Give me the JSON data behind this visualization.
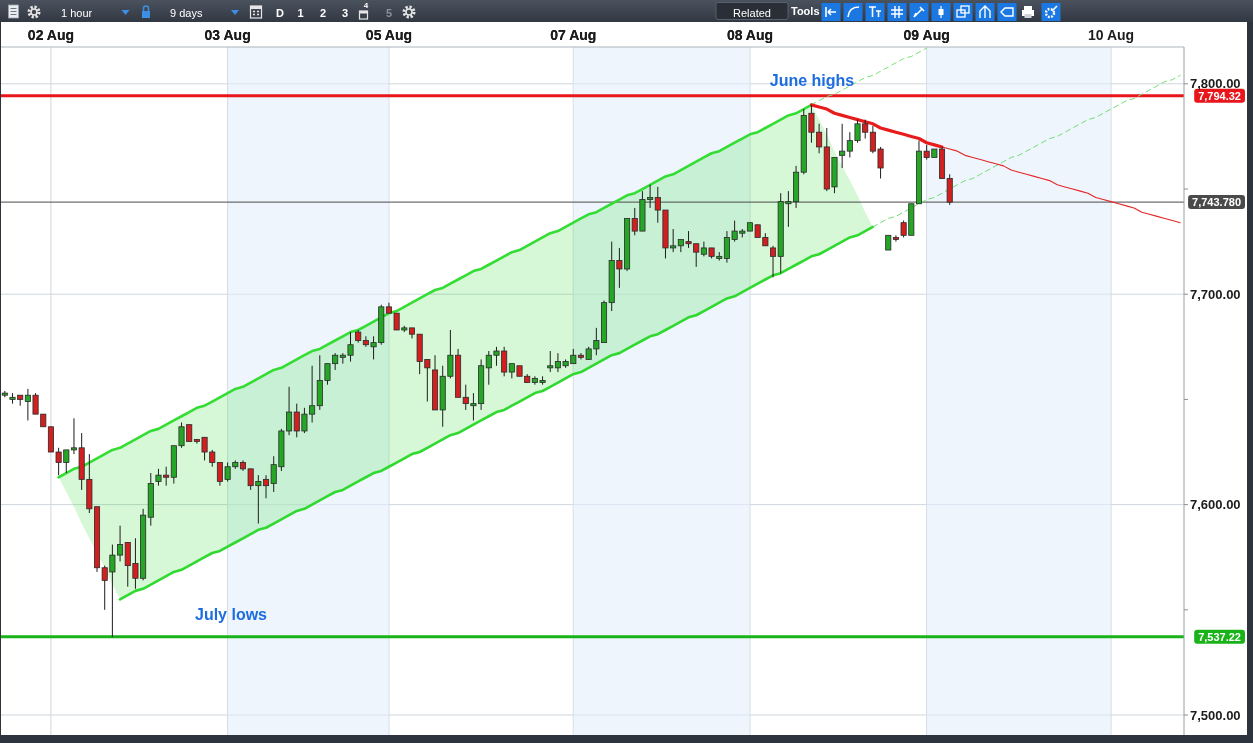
{
  "chart_data": {
    "type": "candlestick",
    "categories": [
      null,
      null,
      null,
      null,
      null,
      null,
      "02 Aug",
      null,
      null,
      null,
      null,
      null,
      null,
      null,
      null,
      null,
      null,
      null,
      null,
      null,
      null,
      null,
      null,
      null,
      null,
      null,
      null,
      null,
      null,
      "03 Aug",
      null,
      null,
      null,
      null,
      null,
      null,
      null,
      null,
      null,
      null,
      null,
      null,
      null,
      null,
      null,
      null,
      null,
      null,
      null,
      null,
      "05 Aug",
      null,
      null,
      null,
      null,
      null,
      null,
      null,
      null,
      null,
      null,
      null,
      null,
      null,
      null,
      null,
      null,
      null,
      null,
      null,
      null,
      null,
      null,
      null,
      "07 Aug",
      null,
      null,
      null,
      null,
      null,
      null,
      null,
      null,
      null,
      null,
      null,
      null,
      null,
      null,
      null,
      null,
      null,
      null,
      null,
      null,
      null,
      null,
      "08 Aug",
      null,
      null,
      null,
      null,
      null,
      null,
      null,
      null,
      null,
      null,
      null,
      null,
      null,
      null,
      null,
      null,
      null,
      null,
      null,
      null,
      null,
      null,
      "09 Aug",
      null,
      null,
      null,
      null,
      null,
      null,
      null,
      null,
      null,
      null,
      null,
      null,
      null,
      null,
      null,
      null,
      null,
      null,
      null,
      null,
      null,
      null,
      null,
      "10 Aug",
      null,
      null,
      null,
      null,
      null,
      null,
      null,
      null,
      null
    ],
    "ohlc": [
      [
        7652,
        7654,
        7651,
        7653
      ],
      [
        7650,
        7653,
        7648,
        7651
      ],
      [
        7652,
        7652,
        7647,
        7650
      ],
      [
        7649,
        7655,
        7640,
        7652
      ],
      [
        7652,
        7653,
        7643,
        7643
      ],
      [
        7643,
        7643,
        7637,
        7637
      ],
      [
        7637,
        7637,
        7625,
        7625
      ],
      [
        7625,
        7627,
        7614,
        7620
      ],
      [
        7620,
        7626,
        7615,
        7626
      ],
      [
        7626,
        7641,
        7624,
        7627
      ],
      [
        7627,
        7634,
        7607,
        7612
      ],
      [
        7612,
        7624,
        7596,
        7598
      ],
      [
        7599,
        7599,
        7568,
        7570
      ],
      [
        7570,
        7571,
        7550,
        7564
      ],
      [
        7568,
        7581,
        7537,
        7576
      ],
      [
        7576,
        7590,
        7573,
        7581
      ],
      [
        7582,
        7582,
        7561,
        7571
      ],
      [
        7572,
        7584,
        7560,
        7565
      ],
      [
        7565,
        7598,
        7564,
        7595
      ],
      [
        7594,
        7615,
        7590,
        7610
      ],
      [
        7611,
        7617,
        7609,
        7614
      ],
      [
        7614,
        7618,
        7609,
        7613
      ],
      [
        7613,
        7628,
        7610,
        7628
      ],
      [
        7628,
        7639,
        7627,
        7637
      ],
      [
        7638,
        7638,
        7630,
        7630
      ],
      [
        7631,
        7631,
        7629,
        7630
      ],
      [
        7632,
        7632,
        7621,
        7625
      ],
      [
        7625,
        7626,
        7618,
        7620
      ],
      [
        7620,
        7620,
        7609,
        7611
      ],
      [
        7612,
        7620,
        7611,
        7618
      ],
      [
        7618,
        7621,
        7617,
        7620
      ],
      [
        7620,
        7621,
        7616,
        7617
      ],
      [
        7617,
        7617,
        7607,
        7609
      ],
      [
        7609,
        7614,
        7591,
        7611
      ],
      [
        7612,
        7614,
        7603,
        7609
      ],
      [
        7610,
        7623,
        7606,
        7619
      ],
      [
        7618,
        7636,
        7616,
        7635
      ],
      [
        7635,
        7656,
        7633,
        7644
      ],
      [
        7644,
        7648,
        7632,
        7635
      ],
      [
        7635,
        7646,
        7634,
        7643
      ],
      [
        7643,
        7666,
        7639,
        7647
      ],
      [
        7647,
        7671,
        7645,
        7659
      ],
      [
        7659,
        7667,
        7657,
        7667
      ],
      [
        7667,
        7672,
        7664,
        7671
      ],
      [
        7670,
        7672,
        7667,
        7671
      ],
      [
        7671,
        7682,
        7668,
        7676
      ],
      [
        7682,
        7683,
        7677,
        7678
      ],
      [
        7678,
        7680,
        7675,
        7676
      ],
      [
        7675,
        7680,
        7669,
        7677
      ],
      [
        7677,
        7695,
        7676,
        7694
      ],
      [
        7694,
        7696,
        7691,
        7691
      ],
      [
        7691,
        7691,
        7683,
        7683
      ],
      [
        7683,
        7685,
        7682,
        7684
      ],
      [
        7684,
        7684,
        7679,
        7681
      ],
      [
        7681,
        7681,
        7662,
        7668
      ],
      [
        7669,
        7669,
        7649,
        7665
      ],
      [
        7664,
        7671,
        7645,
        7645
      ],
      [
        7645,
        7666,
        7637,
        7661
      ],
      [
        7661,
        7683,
        7660,
        7671
      ],
      [
        7671,
        7674,
        7651,
        7651
      ],
      [
        7651,
        7657,
        7645,
        7648
      ],
      [
        7647,
        7653,
        7640,
        7648
      ],
      [
        7648,
        7669,
        7645,
        7666
      ],
      [
        7665,
        7673,
        7657,
        7671
      ],
      [
        7671,
        7675,
        7666,
        7673
      ],
      [
        7673,
        7675,
        7661,
        7663
      ],
      [
        7663,
        7667,
        7660,
        7667
      ],
      [
        7666,
        7666,
        7661,
        7661
      ],
      [
        7661,
        7662,
        7658,
        7658
      ],
      [
        7658,
        7661,
        7657,
        7660
      ],
      [
        7658,
        7661,
        7657,
        7659
      ],
      [
        7665,
        7673,
        7663,
        7666
      ],
      [
        7665,
        7672,
        7663,
        7668
      ],
      [
        7666,
        7669,
        7665,
        7668
      ],
      [
        7667,
        7674,
        7667,
        7671
      ],
      [
        7671,
        7672,
        7669,
        7670
      ],
      [
        7669,
        7675,
        7669,
        7674
      ],
      [
        7674,
        7684,
        7671,
        7678
      ],
      [
        7677,
        7697,
        7677,
        7696
      ],
      [
        7696,
        7725,
        7692,
        7716
      ],
      [
        7716,
        7722,
        7703,
        7712
      ],
      [
        7712,
        7736,
        7711,
        7736
      ],
      [
        7736,
        7741,
        7728,
        7730
      ],
      [
        7730,
        7749,
        7730,
        7745
      ],
      [
        7745,
        7752,
        7741,
        7746
      ],
      [
        7746,
        7751,
        7734,
        7740
      ],
      [
        7740,
        7740,
        7717,
        7722
      ],
      [
        7722,
        7731,
        7720,
        7723
      ],
      [
        7723,
        7726,
        7720,
        7726
      ],
      [
        7725,
        7730,
        7722,
        7724
      ],
      [
        7724,
        7724,
        7713,
        7720
      ],
      [
        7719,
        7725,
        7718,
        7722
      ],
      [
        7722,
        7722,
        7717,
        7718
      ],
      [
        7717,
        7720,
        7716,
        7718
      ],
      [
        7717,
        7730,
        7715,
        7727
      ],
      [
        7726,
        7735,
        7725,
        7730
      ],
      [
        7729,
        7731,
        7727,
        7730
      ],
      [
        7730,
        7734,
        7730,
        7734
      ],
      [
        7733,
        7733,
        7727,
        7727
      ],
      [
        7727,
        7729,
        7723,
        7723
      ],
      [
        7722,
        7723,
        7708,
        7718
      ],
      [
        7718,
        7748,
        7710,
        7744
      ],
      [
        7743,
        7749,
        7732,
        7744
      ],
      [
        7744,
        7761,
        7741,
        7758
      ],
      [
        7758,
        7788,
        7757,
        7785
      ],
      [
        7786,
        7790,
        7772,
        7777
      ],
      [
        7777,
        7781,
        7767,
        7770
      ],
      [
        7770,
        7779,
        7749,
        7750
      ],
      [
        7751,
        7765,
        7748,
        7765
      ],
      [
        7766,
        7781,
        7760,
        7768
      ],
      [
        7768,
        7777,
        7765,
        7773
      ],
      [
        7773,
        7783,
        7772,
        7781
      ],
      [
        7781,
        7783,
        7774,
        7777
      ],
      [
        7777,
        7780,
        7767,
        7768
      ],
      [
        7769,
        7770,
        7755,
        7760
      ],
      [
        7721,
        7728,
        7721,
        7728
      ],
      [
        7727,
        7728,
        7725,
        7726
      ],
      [
        7734,
        7735,
        7727,
        7728
      ],
      [
        7728,
        7743,
        7728,
        7743
      ],
      [
        7743,
        7773,
        7743,
        7768
      ],
      [
        7768,
        7771,
        7764,
        7765
      ],
      [
        7765,
        7769,
        7765,
        7769
      ],
      [
        7769,
        7770,
        7755,
        7755
      ],
      [
        7755,
        7757,
        7742.5,
        7743.78
      ],
      null,
      null,
      null,
      null,
      null,
      null,
      null,
      null,
      null,
      null,
      null,
      null,
      null,
      null,
      null,
      null,
      null,
      null,
      null,
      null,
      null,
      null,
      null,
      null,
      null,
      null,
      null,
      null,
      null,
      null
    ],
    "colors": [
      "#26a626",
      "#26a626",
      "#d22020",
      "#26a626",
      "#d22020",
      "#d22020",
      "#d22020",
      "#d22020",
      "#26a626",
      "#26a626",
      "#d22020",
      "#d22020",
      "#d22020",
      "#d22020",
      "#26a626",
      "#26a626",
      "#d22020",
      "#d22020",
      "#26a626",
      "#26a626",
      "#26a626",
      "#d22020",
      "#26a626",
      "#26a626",
      "#d22020",
      "#d22020",
      "#d22020",
      "#d22020",
      "#d22020",
      "#26a626",
      "#26a626",
      "#d22020",
      "#d22020",
      "#26a626",
      "#d22020",
      "#26a626",
      "#26a626",
      "#26a626",
      "#d22020",
      "#26a626",
      "#26a626",
      "#26a626",
      "#26a626",
      "#26a626",
      "#26a626",
      "#26a626",
      "#d22020",
      "#d22020",
      "#26a626",
      "#26a626",
      "#d22020",
      "#d22020",
      "#26a626",
      "#d22020",
      "#d22020",
      "#d22020",
      "#d22020",
      "#26a626",
      "#26a626",
      "#d22020",
      "#d22020",
      "#26a626",
      "#26a626",
      "#26a626",
      "#26a626",
      "#d22020",
      "#26a626",
      "#d22020",
      "#d22020",
      "#26a626",
      "#26a626",
      "#26a626",
      "#26a626",
      "#26a626",
      "#26a626",
      "#d22020",
      "#26a626",
      "#26a626",
      "#26a626",
      "#26a626",
      "#d22020",
      "#26a626",
      "#d22020",
      "#26a626",
      "#26a626",
      "#d22020",
      "#d22020",
      "#26a626",
      "#26a626",
      "#d22020",
      "#d22020",
      "#26a626",
      "#d22020",
      "#26a626",
      "#26a626",
      "#26a626",
      "#26a626",
      "#26a626",
      "#d22020",
      "#d22020",
      "#d22020",
      "#26a626",
      "#26a626",
      "#26a626",
      "#26a626",
      "#d22020",
      "#d22020",
      "#d22020",
      "#26a626",
      "#26a626",
      "#26a626",
      "#26a626",
      "#d22020",
      "#d22020",
      "#d22020",
      "#26a626",
      "#d22020",
      "#d22020",
      "#26a626",
      "#26a626",
      "#d22020",
      "#26a626",
      "#d22020",
      "#d22020",
      null,
      null,
      null,
      null,
      null,
      null,
      null,
      null,
      null,
      null,
      null,
      null,
      null,
      null,
      null,
      null,
      null,
      null,
      null,
      null,
      null,
      null,
      null,
      null,
      null,
      null,
      null,
      null,
      null,
      null
    ],
    "series": [
      {
        "type": "line",
        "color": "#33dd33",
        "values": [
          null,
          null,
          null,
          null,
          null,
          null,
          null,
          7613,
          7615,
          7617,
          7618,
          7620,
          7622,
          7624,
          7626,
          7627,
          7629,
          7631,
          7633,
          7635,
          7636,
          7638,
          7640,
          7642,
          7644,
          7646,
          7647,
          7649,
          7651,
          7653,
          7655,
          7656,
          7658,
          7660,
          7662,
          7664,
          7665,
          7667,
          7669,
          7671,
          7673,
          7674,
          7676,
          7678,
          7680,
          7682,
          7683,
          7685,
          7687,
          7689,
          7691,
          7692,
          7694,
          7696,
          7698,
          7700,
          7702,
          7703,
          7705,
          7707,
          7709,
          7711,
          7712,
          7714,
          7716,
          7718,
          7720,
          7721,
          7723,
          7725,
          7727,
          7729,
          7730,
          7732,
          7734,
          7736,
          7738,
          7739,
          7741,
          7743,
          7745,
          7747,
          7748,
          7750,
          7752,
          7754,
          7756,
          7757,
          7759,
          7761,
          7763,
          7765,
          7767,
          7768,
          7770,
          7772,
          7774,
          7776,
          7777,
          7779,
          7781,
          7783,
          7785,
          7786,
          7788,
          7790,
          null,
          null,
          null,
          null,
          null,
          null,
          null,
          null,
          null,
          null,
          null,
          null,
          null,
          null,
          null,
          null,
          null,
          null,
          null,
          null,
          null,
          null,
          null,
          null,
          null,
          null,
          null,
          null,
          null,
          null,
          null,
          null,
          null,
          null,
          null,
          null,
          null,
          null,
          null,
          null,
          null,
          null,
          null,
          null,
          null,
          null,
          null,
          null
        ],
        "lower": [
          null,
          null,
          null,
          null,
          null,
          null,
          null,
          7613,
          7606,
          7599,
          7591,
          7584,
          7577,
          7570,
          7562,
          7555,
          7557,
          7559,
          7560,
          7562,
          7564,
          7566,
          7568,
          7569,
          7571,
          7573,
          7575,
          7577,
          7578,
          7580,
          7582,
          7584,
          7586,
          7588,
          7589,
          7591,
          7593,
          7595,
          7597,
          7598,
          7600,
          7602,
          7604,
          7606,
          7607,
          7609,
          7611,
          7613,
          7615,
          7616,
          7618,
          7620,
          7622,
          7624,
          7625,
          7627,
          7629,
          7631,
          7633,
          7634,
          7636,
          7638,
          7640,
          7642,
          7644,
          7645,
          7647,
          7649,
          7651,
          7653,
          7654,
          7656,
          7658,
          7660,
          7662,
          7663,
          7665,
          7667,
          7669,
          7671,
          7672,
          7674,
          7676,
          7678,
          7680,
          7681,
          7683,
          7685,
          7687,
          7689,
          7690,
          7692,
          7694,
          7696,
          7698,
          7699,
          7701,
          7703,
          7705,
          7707,
          7709,
          7710,
          7712,
          7714,
          7716,
          7718,
          7719,
          7721,
          7723,
          7725,
          7727,
          7728,
          7730,
          7732,
          null,
          null,
          null,
          null,
          null,
          null,
          null,
          null,
          null,
          null,
          null,
          null,
          null,
          null,
          null,
          null,
          null,
          null,
          null,
          null,
          null,
          null,
          null,
          null,
          null,
          null,
          null,
          null,
          null,
          null,
          null,
          null,
          null,
          null,
          null,
          null,
          null,
          null,
          null,
          null
        ],
        "upper": [
          null,
          null,
          null,
          null,
          null,
          null,
          null,
          7613,
          7615,
          7617,
          7618,
          7620,
          7622,
          7624,
          7626,
          7627,
          7629,
          7631,
          7633,
          7635,
          7636,
          7638,
          7640,
          7642,
          7644,
          7646,
          7647,
          7649,
          7651,
          7653,
          7655,
          7656,
          7658,
          7660,
          7662,
          7664,
          7665,
          7667,
          7669,
          7671,
          7673,
          7674,
          7676,
          7678,
          7680,
          7682,
          7683,
          7685,
          7687,
          7689,
          7691,
          7692,
          7694,
          7696,
          7698,
          7700,
          7702,
          7703,
          7705,
          7707,
          7709,
          7711,
          7712,
          7714,
          7716,
          7718,
          7720,
          7721,
          7723,
          7725,
          7727,
          7729,
          7730,
          7732,
          7734,
          7736,
          7738,
          7739,
          7741,
          7743,
          7745,
          7747,
          7748,
          7750,
          7752,
          7754,
          7756,
          7757,
          7759,
          7761,
          7763,
          7765,
          7767,
          7768,
          7770,
          7772,
          7774,
          7776,
          7777,
          7779,
          7781,
          7783,
          7785,
          7786,
          7788,
          7790,
          7783,
          7776,
          7768,
          7761,
          7754,
          7747,
          7739,
          7732,
          null,
          null,
          null,
          null,
          null,
          null,
          null,
          null,
          null,
          null,
          null,
          null,
          null,
          null,
          null,
          null,
          null,
          null,
          null,
          null,
          null,
          null,
          null,
          null,
          null,
          null,
          null,
          null,
          null,
          null,
          null,
          null,
          null,
          null,
          null,
          null,
          null,
          null,
          null,
          null
        ]
      },
      {
        "type": "line",
        "color": "#2fd92f",
        "values": [
          null,
          null,
          null,
          null,
          null,
          null,
          null,
          null,
          null,
          null,
          null,
          null,
          null,
          null,
          null,
          7555,
          7557,
          7559,
          7560,
          7562,
          7564,
          7566,
          7568,
          7569,
          7571,
          7573,
          7575,
          7577,
          7578,
          7580,
          7582,
          7584,
          7586,
          7588,
          7589,
          7591,
          7593,
          7595,
          7597,
          7598,
          7600,
          7602,
          7604,
          7606,
          7607,
          7609,
          7611,
          7613,
          7615,
          7616,
          7618,
          7620,
          7622,
          7624,
          7625,
          7627,
          7629,
          7631,
          7633,
          7634,
          7636,
          7638,
          7640,
          7642,
          7644,
          7645,
          7647,
          7649,
          7651,
          7653,
          7654,
          7656,
          7658,
          7660,
          7662,
          7663,
          7665,
          7667,
          7669,
          7671,
          7672,
          7674,
          7676,
          7678,
          7680,
          7681,
          7683,
          7685,
          7687,
          7689,
          7690,
          7692,
          7694,
          7696,
          7698,
          7699,
          7701,
          7703,
          7705,
          7707,
          7709,
          7710,
          7712,
          7714,
          7716,
          7718,
          7719,
          7721,
          7723,
          7725,
          7727,
          7728,
          7730,
          7732,
          null,
          null,
          null,
          null,
          null,
          null,
          null,
          null,
          null,
          null,
          null,
          null,
          null,
          null,
          null,
          null,
          null,
          null,
          null,
          null,
          null,
          null,
          null,
          null,
          null,
          null,
          null,
          null,
          null,
          null,
          null,
          null,
          null,
          null,
          null,
          null,
          null,
          null,
          null,
          null
        ]
      },
      {
        "type": "line",
        "color": "#77e277",
        "line_style": "dashed",
        "values": [
          null,
          null,
          null,
          null,
          null,
          null,
          null,
          null,
          null,
          null,
          null,
          null,
          null,
          null,
          null,
          null,
          null,
          null,
          null,
          null,
          null,
          null,
          null,
          null,
          null,
          null,
          null,
          null,
          null,
          null,
          null,
          null,
          null,
          null,
          null,
          null,
          null,
          null,
          null,
          null,
          null,
          null,
          null,
          null,
          null,
          null,
          null,
          null,
          null,
          null,
          null,
          null,
          null,
          null,
          null,
          null,
          null,
          null,
          null,
          null,
          null,
          null,
          null,
          null,
          null,
          null,
          null,
          null,
          null,
          null,
          null,
          null,
          null,
          null,
          null,
          null,
          null,
          null,
          null,
          null,
          null,
          null,
          null,
          null,
          null,
          null,
          null,
          null,
          null,
          null,
          null,
          null,
          null,
          null,
          null,
          null,
          null,
          null,
          null,
          null,
          null,
          null,
          null,
          null,
          null,
          7790,
          7792,
          7794,
          7795,
          7797,
          7799,
          7801,
          7803,
          7804,
          7806,
          7808,
          7810,
          7812,
          7813,
          7815,
          7817,
          null,
          null,
          null,
          null,
          null,
          null,
          null,
          null,
          null,
          null,
          null,
          null,
          null,
          null,
          null,
          null,
          null,
          null,
          null,
          null,
          null,
          null,
          null,
          null,
          null,
          null,
          null,
          null,
          null,
          null,
          null,
          null,
          null
        ]
      },
      {
        "type": "line",
        "color": "#70de70",
        "line_style": "dashed",
        "values": [
          null,
          null,
          null,
          null,
          null,
          null,
          null,
          null,
          null,
          null,
          null,
          null,
          null,
          null,
          null,
          null,
          null,
          null,
          null,
          null,
          null,
          null,
          null,
          null,
          null,
          null,
          null,
          null,
          null,
          null,
          null,
          null,
          null,
          null,
          null,
          null,
          null,
          null,
          null,
          null,
          null,
          null,
          null,
          null,
          null,
          null,
          null,
          null,
          null,
          null,
          null,
          null,
          null,
          null,
          null,
          null,
          null,
          null,
          null,
          null,
          null,
          null,
          null,
          null,
          null,
          null,
          null,
          null,
          null,
          null,
          null,
          null,
          null,
          null,
          null,
          null,
          null,
          null,
          null,
          null,
          null,
          null,
          null,
          null,
          null,
          null,
          null,
          null,
          null,
          null,
          null,
          null,
          null,
          null,
          null,
          null,
          null,
          null,
          null,
          null,
          null,
          null,
          null,
          null,
          null,
          null,
          null,
          null,
          null,
          null,
          null,
          null,
          null,
          7732,
          7734,
          7736,
          7737,
          7739,
          7741,
          7743,
          7745,
          7746,
          7748,
          7750,
          7752,
          7754,
          7755,
          7757,
          7759,
          7761,
          7763,
          7765,
          7766,
          7768,
          7770,
          7772,
          7774,
          7775,
          7777,
          7779,
          7781,
          7783,
          7784,
          7786,
          7788,
          7790,
          7792,
          7793,
          7795,
          7797,
          7799,
          7801,
          7802,
          7804
        ]
      },
      {
        "type": "line",
        "color": "#e81c1c",
        "values": [
          null,
          null,
          null,
          null,
          null,
          null,
          null,
          null,
          null,
          null,
          null,
          null,
          null,
          null,
          null,
          null,
          null,
          null,
          null,
          null,
          null,
          null,
          null,
          null,
          null,
          null,
          null,
          null,
          null,
          null,
          null,
          null,
          null,
          null,
          null,
          null,
          null,
          null,
          null,
          null,
          null,
          null,
          null,
          null,
          null,
          null,
          null,
          null,
          null,
          null,
          null,
          null,
          null,
          null,
          null,
          null,
          null,
          null,
          null,
          null,
          null,
          null,
          null,
          null,
          null,
          null,
          null,
          null,
          null,
          null,
          null,
          null,
          null,
          null,
          null,
          null,
          null,
          null,
          null,
          null,
          null,
          null,
          null,
          null,
          null,
          null,
          null,
          null,
          null,
          null,
          null,
          null,
          null,
          null,
          null,
          null,
          null,
          null,
          null,
          null,
          null,
          null,
          null,
          null,
          null,
          7790,
          7789,
          7788,
          7786,
          7785,
          7784,
          7783,
          7782,
          7781,
          7779,
          7778,
          7777,
          7776,
          7775,
          7774,
          7772,
          7771,
          7770,
          null,
          null,
          null,
          null,
          null,
          null,
          null,
          null,
          null,
          null,
          null,
          null,
          null,
          null,
          null,
          null,
          null,
          null,
          null,
          null,
          null,
          null,
          null,
          null,
          null,
          null,
          null,
          null,
          null,
          null,
          null
        ]
      },
      {
        "type": "line",
        "color": "#e42626",
        "values": [
          null,
          null,
          null,
          null,
          null,
          null,
          null,
          null,
          null,
          null,
          null,
          null,
          null,
          null,
          null,
          null,
          null,
          null,
          null,
          null,
          null,
          null,
          null,
          null,
          null,
          null,
          null,
          null,
          null,
          null,
          null,
          null,
          null,
          null,
          null,
          null,
          null,
          null,
          null,
          null,
          null,
          null,
          null,
          null,
          null,
          null,
          null,
          null,
          null,
          null,
          null,
          null,
          null,
          null,
          null,
          null,
          null,
          null,
          null,
          null,
          null,
          null,
          null,
          null,
          null,
          null,
          null,
          null,
          null,
          null,
          null,
          null,
          null,
          null,
          null,
          null,
          null,
          null,
          null,
          null,
          null,
          null,
          null,
          null,
          null,
          null,
          null,
          null,
          null,
          null,
          null,
          null,
          null,
          null,
          null,
          null,
          null,
          null,
          null,
          null,
          null,
          null,
          null,
          null,
          null,
          null,
          null,
          null,
          null,
          null,
          null,
          null,
          null,
          null,
          null,
          null,
          null,
          null,
          null,
          null,
          null,
          null,
          7770,
          7769,
          7768,
          7766,
          7765,
          7764,
          7763,
          7762,
          7761,
          7759,
          7758,
          7757,
          7756,
          7755,
          7754,
          7752,
          7751,
          7750,
          7749,
          7748,
          7746,
          7745,
          7744,
          7743,
          7742,
          7741,
          7739,
          7738,
          7737,
          7736,
          7735,
          7734
        ]
      }
    ],
    "ylim": [
      7490.5,
      7817.5
    ],
    "yticks": [
      {
        "value": 7500,
        "label": "7,500.00"
      },
      {
        "value": 7550,
        "label": null
      },
      {
        "value": 7600,
        "label": "7,600.00"
      },
      {
        "value": 7650,
        "label": null
      },
      {
        "value": 7700,
        "label": "7,700.00"
      },
      {
        "value": 7750,
        "label": null
      },
      {
        "value": 7800,
        "label": "7,800.00"
      }
    ],
    "grid": true,
    "ref_lines": [
      {
        "axis": "y",
        "value": 7794.32,
        "label": "7,794.32",
        "color": "#e8151b"
      },
      {
        "axis": "y",
        "value": 7743.78,
        "label": "7,743.780",
        "color": "#4a4a4a"
      },
      {
        "axis": "y",
        "value": 7537.22,
        "label": "7,537.22",
        "color": "#19b319"
      }
    ],
    "bands": [
      {
        "axis": "x",
        "from": "03 Aug",
        "to": "05 Aug",
        "color": "#e2eefc"
      },
      {
        "axis": "x",
        "from": "07 Aug",
        "to": "08 Aug",
        "color": "#e2eefc"
      },
      {
        "axis": "x",
        "from": "09 Aug",
        "to": "10 Aug",
        "color": "#e2eefc"
      }
    ],
    "annotations": [
      "1 hour",
      "9 days",
      "D",
      "1",
      "2",
      "3",
      "4",
      "5",
      "Related",
      "Tools",
      {
        "text": "June highs",
        "y": 7794.32
      },
      {
        "text": "July lows",
        "y": 7537.22
      }
    ]
  }
}
